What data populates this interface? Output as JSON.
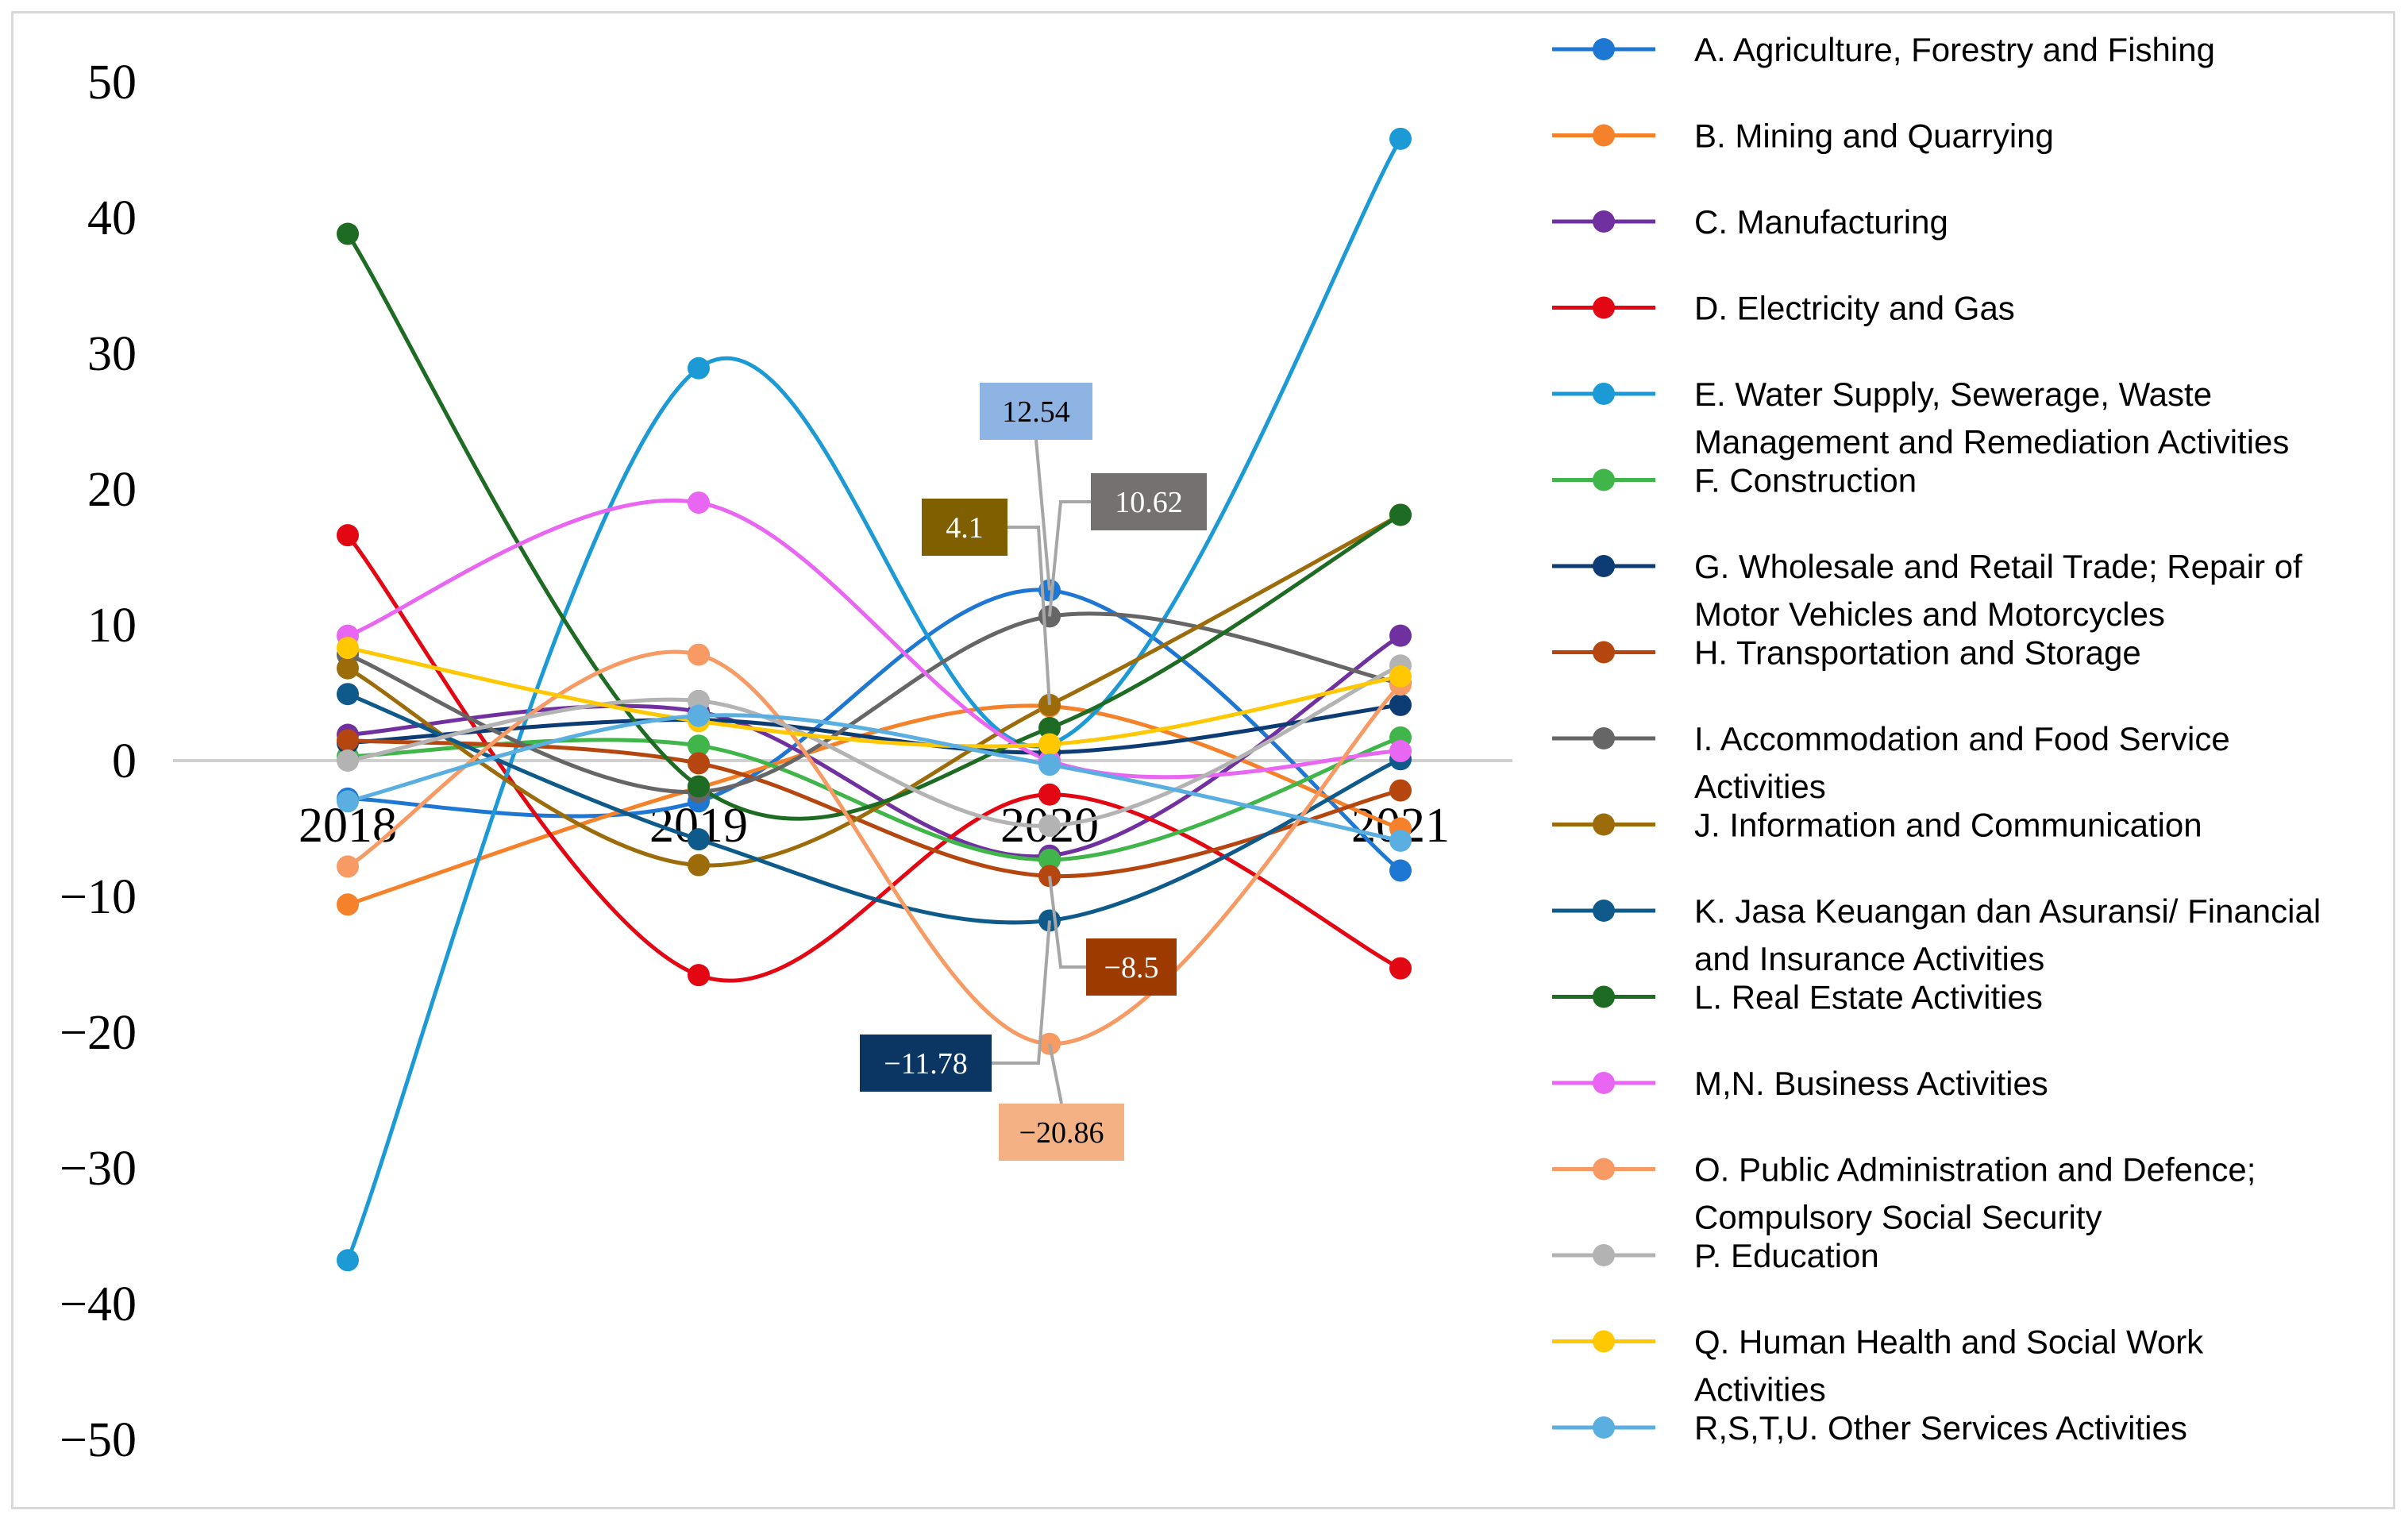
{
  "chart_data": {
    "type": "line",
    "title": "",
    "xlabel": "",
    "ylabel": "",
    "categories": [
      "2018",
      "2019",
      "2020",
      "2021"
    ],
    "ylim": [
      -50,
      50
    ],
    "yticks": [
      "50",
      "40",
      "30",
      "20",
      "10",
      "0",
      "−10",
      "−20",
      "−30",
      "−40",
      "−50"
    ],
    "ytick_values": [
      50,
      40,
      30,
      20,
      10,
      0,
      -10,
      -20,
      -30,
      -40,
      -50
    ],
    "legend_position": "right",
    "grid": false,
    "series": [
      {
        "name": "A. Agriculture, Forestry and Fishing",
        "color": "#1f77d4",
        "values": [
          -2.8,
          -3.0,
          12.54,
          -8.1
        ]
      },
      {
        "name": "B. Mining and Quarrying",
        "color": "#f5822a",
        "values": [
          -10.6,
          -2.0,
          4.0,
          -5.0
        ]
      },
      {
        "name": "C. Manufacturing",
        "color": "#7030a0",
        "values": [
          1.9,
          3.6,
          -7.0,
          9.2
        ]
      },
      {
        "name": "D. Electricity and Gas",
        "color": "#e30613",
        "values": [
          16.6,
          -15.8,
          -2.5,
          -15.3
        ]
      },
      {
        "name": "E. Water Supply, Sewerage, Waste Management and Remediation Activities",
        "color": "#1b9ad6",
        "values": [
          -36.8,
          28.9,
          1.2,
          45.8
        ]
      },
      {
        "name": "F. Construction",
        "color": "#3fb54a",
        "values": [
          0.3,
          1.1,
          -7.3,
          1.7
        ]
      },
      {
        "name": "G. Wholesale and Retail Trade; Repair of Motor Vehicles and Motorcycles",
        "color": "#0d3b73",
        "values": [
          1.3,
          3.0,
          0.6,
          4.1
        ]
      },
      {
        "name": "H. Transportation and Storage",
        "color": "#b5460f",
        "values": [
          1.5,
          -0.2,
          -8.5,
          -2.2
        ]
      },
      {
        "name": "I. Accommodation and Food Service Activities",
        "color": "#666666",
        "values": [
          7.8,
          -2.3,
          10.62,
          5.7
        ]
      },
      {
        "name": "J. Information and Communication",
        "color": "#9c6b0a",
        "values": [
          6.8,
          -7.7,
          4.1,
          18.1
        ]
      },
      {
        "name": "K. Jasa Keuangan dan Asuransi/ Financial and Insurance Activities",
        "color": "#0e5a8a",
        "values": [
          4.9,
          -5.8,
          -11.78,
          0.1
        ]
      },
      {
        "name": "L. Real Estate Activities",
        "color": "#1e6b23",
        "values": [
          38.8,
          -1.9,
          2.4,
          18.1
        ]
      },
      {
        "name": "M,N. Business Activities",
        "color": "#e866f2",
        "values": [
          9.2,
          19.0,
          0.0,
          0.7
        ]
      },
      {
        "name": "O. Public Administration and Defence; Compulsory Social Security",
        "color": "#f79a63",
        "values": [
          -7.8,
          7.8,
          -20.86,
          5.6
        ]
      },
      {
        "name": "P. Education",
        "color": "#b3b3b3",
        "values": [
          0.0,
          4.4,
          -4.8,
          7.0
        ]
      },
      {
        "name": "Q. Human Health and Social Work Activities",
        "color": "#ffc800",
        "values": [
          8.3,
          2.9,
          1.2,
          6.2
        ]
      },
      {
        "name": "R,S,T,U. Other Services Activities",
        "color": "#5aaee0",
        "values": [
          -3.0,
          3.3,
          -0.3,
          -5.9
        ]
      }
    ],
    "annotations": [
      {
        "text": "12.54",
        "series": 0,
        "bg": "#8eb4e3",
        "color": "#000000"
      },
      {
        "text": "10.62",
        "series": 8,
        "bg": "#767171",
        "color": "#ffffff"
      },
      {
        "text": "4.1",
        "series": 9,
        "bg": "#7f5f00",
        "color": "#ffffff"
      },
      {
        "text": "−8.5",
        "series": 7,
        "bg": "#9c3a00",
        "color": "#ffffff"
      },
      {
        "text": "−11.78",
        "series": 10,
        "bg": "#0b3563",
        "color": "#ffffff"
      },
      {
        "text": "−20.86",
        "series": 13,
        "bg": "#f4b183",
        "color": "#000000"
      }
    ]
  }
}
